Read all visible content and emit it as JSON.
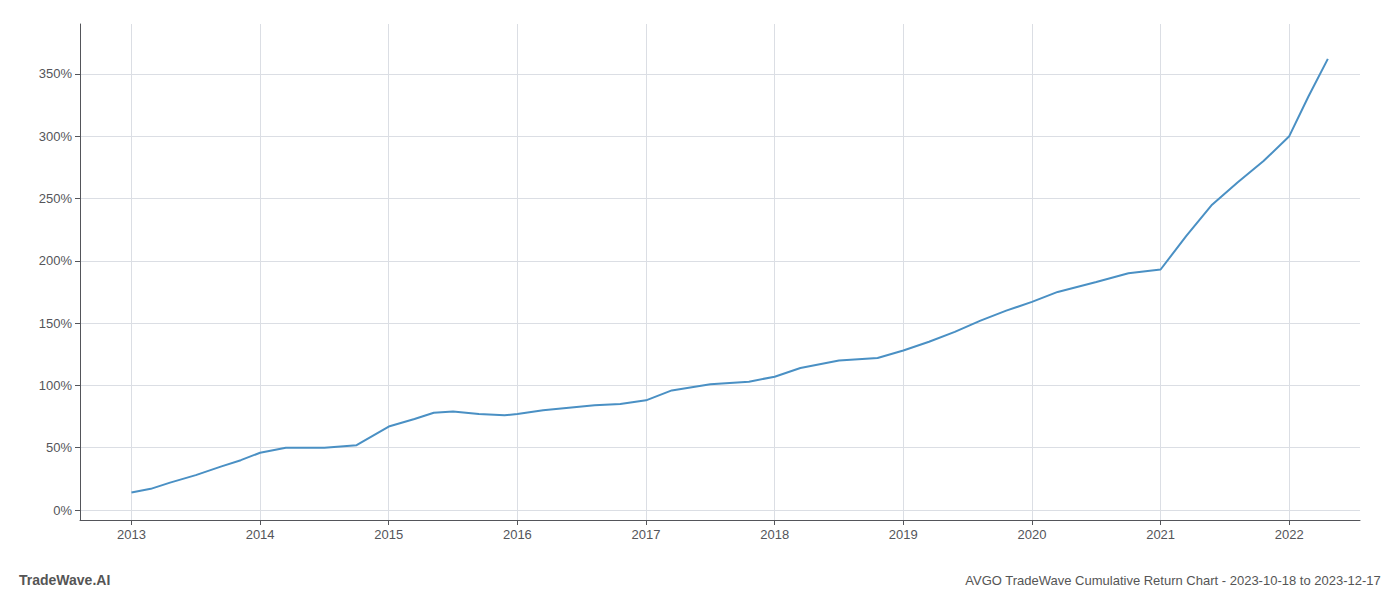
{
  "chart_data": {
    "type": "line",
    "title": "AVGO TradeWave Cumulative Return Chart - 2023-10-18 to 2023-12-17",
    "annotations": [
      "TradeWave.AI"
    ],
    "x": [
      2013.0,
      2013.15,
      2013.3,
      2013.5,
      2013.7,
      2013.85,
      2014.0,
      2014.2,
      2014.5,
      2014.75,
      2015.0,
      2015.2,
      2015.35,
      2015.5,
      2015.7,
      2015.9,
      2016.0,
      2016.2,
      2016.4,
      2016.6,
      2016.8,
      2017.0,
      2017.2,
      2017.5,
      2017.8,
      2018.0,
      2018.2,
      2018.5,
      2018.8,
      2019.0,
      2019.2,
      2019.4,
      2019.6,
      2019.8,
      2020.0,
      2020.2,
      2020.5,
      2020.75,
      2021.0,
      2021.2,
      2021.4,
      2021.6,
      2021.8,
      2022.0,
      2022.15,
      2022.3
    ],
    "values": [
      14,
      17,
      22,
      28,
      35,
      40,
      46,
      50,
      50,
      52,
      67,
      73,
      78,
      79,
      77,
      76,
      77,
      80,
      82,
      84,
      85,
      88,
      96,
      101,
      103,
      107,
      114,
      120,
      122,
      128,
      135,
      143,
      152,
      160,
      167,
      175,
      183,
      190,
      193,
      220,
      245,
      263,
      280,
      300,
      332,
      362
    ],
    "color": "#4a90c4",
    "xlim": [
      2012.6,
      2022.55
    ],
    "xticks": [
      2013,
      2014,
      2015,
      2016,
      2017,
      2018,
      2019,
      2020,
      2021,
      2022
    ],
    "ylim": [
      -8,
      390
    ],
    "yticks": [
      {
        "value": 0,
        "label": "0%"
      },
      {
        "value": 50,
        "label": "50%"
      },
      {
        "value": 100,
        "label": "100%"
      },
      {
        "value": 150,
        "label": "150%"
      },
      {
        "value": 200,
        "label": "200%"
      },
      {
        "value": 250,
        "label": "250%"
      },
      {
        "value": 300,
        "label": "300%"
      },
      {
        "value": 350,
        "label": "350%"
      }
    ],
    "grid": true
  }
}
